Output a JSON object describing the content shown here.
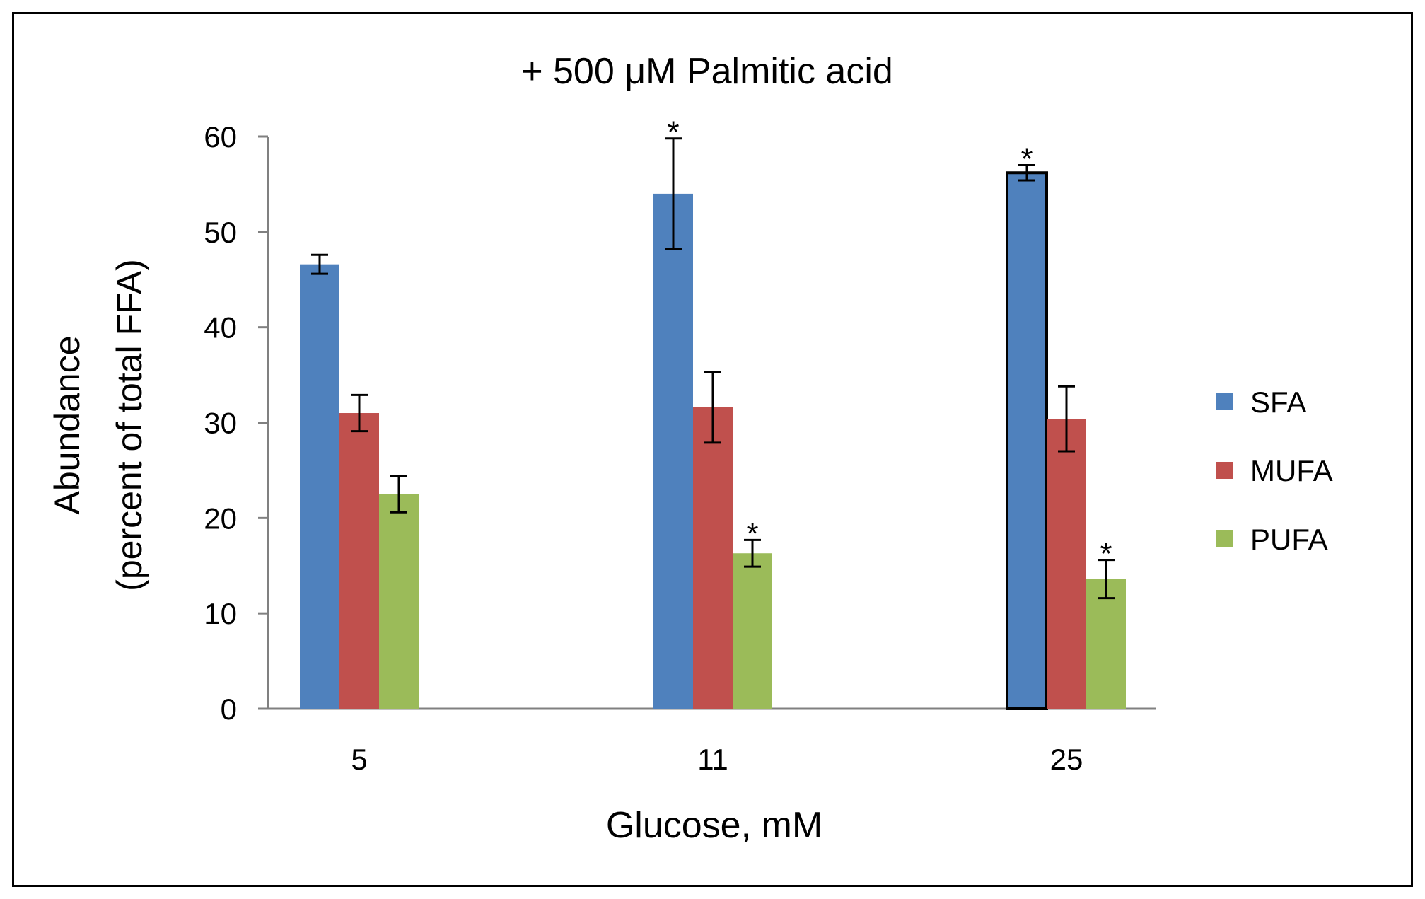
{
  "chart_data": {
    "type": "bar",
    "title": "+ 500 μM Palmitic acid",
    "xlabel": "Glucose, mM",
    "ylabel_lines": [
      "Abundance",
      "(percent of total FFA)"
    ],
    "categories": [
      "5",
      "11",
      "25"
    ],
    "ylim": [
      0,
      60
    ],
    "yticks": [
      0,
      10,
      20,
      30,
      40,
      50,
      60
    ],
    "grid": false,
    "legend_position": "right",
    "significance_marker": "*",
    "series": [
      {
        "name": "SFA",
        "color": "#4F81BD",
        "values": [
          46.6,
          54.0,
          56.2
        ],
        "errors": [
          1.0,
          5.8,
          0.8
        ],
        "significant": [
          false,
          true,
          true
        ]
      },
      {
        "name": "MUFA",
        "color": "#C0504D",
        "values": [
          31.0,
          31.6,
          30.4
        ],
        "errors": [
          1.9,
          3.7,
          3.4
        ],
        "significant": [
          false,
          false,
          false
        ]
      },
      {
        "name": "PUFA",
        "color": "#9BBB59",
        "values": [
          22.5,
          16.3,
          13.6
        ],
        "errors": [
          1.9,
          1.4,
          2.0
        ],
        "significant": [
          false,
          true,
          true
        ]
      }
    ]
  }
}
